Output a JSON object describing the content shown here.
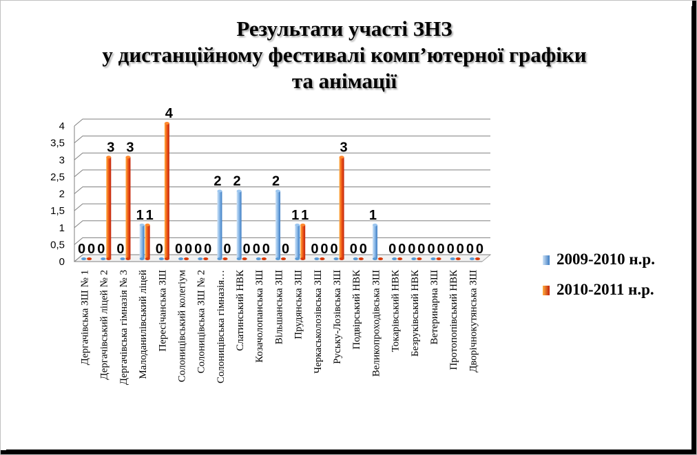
{
  "chart_data": {
    "type": "bar",
    "title_lines": [
      "Результати участі ЗНЗ",
      "у дистанційному фестивалі комп’ютерної графіки",
      "та анімації"
    ],
    "y_ticks": [
      "0",
      "0,5",
      "1",
      "1,5",
      "2",
      "2,5",
      "3",
      "3,5",
      "4"
    ],
    "ylim": [
      0,
      4
    ],
    "grid": true,
    "legend_position": "right",
    "categories": [
      "Дергачівська ЗШ № 1",
      "Дергачівський ліцей № 2",
      "Дергачівська гімназія № 3",
      "Малоданилівський ліцей",
      "Пересічанська ЗШ",
      "Солоницівський колегіум",
      "Солоницівська ЗШ № 2",
      "Солоницівська гімназія…",
      "Слатинський НВК",
      "Козачолопанська ЗШ",
      "Вільшанська ЗШ",
      "Прудянська ЗШ",
      "Черкаськолозівська ЗШ",
      "Руську-Лозівська ЗШ",
      "Подвірський НВК",
      "Великопроходівська ЗШ",
      "Токарівський НВК",
      "Безруківський НВК",
      "Ветеринарна ЗШ",
      "Протопопівський НВК",
      "Дворічнокутянська ЗШ"
    ],
    "series": [
      {
        "name": "2009-2010 н.р.",
        "color": "#5b9bd5",
        "values": [
          0,
          0,
          0,
          1,
          0,
          0,
          0,
          2,
          2,
          0,
          2,
          1,
          0,
          0,
          0,
          1,
          0,
          0,
          0,
          0,
          0
        ]
      },
      {
        "name": "2010-2011 н.р.",
        "color": "#e8410f",
        "values": [
          0,
          3,
          3,
          1,
          4,
          0,
          0,
          0,
          0,
          0,
          0,
          1,
          0,
          3,
          0,
          0,
          0,
          0,
          0,
          0,
          0
        ]
      }
    ],
    "data_labels": [
      [
        "0",
        "0"
      ],
      [
        "0",
        "3"
      ],
      [
        "0",
        "3"
      ],
      [
        "1",
        "1"
      ],
      [
        "0",
        "4"
      ],
      [
        "0",
        "0"
      ],
      [
        "0",
        "0"
      ],
      [
        "2",
        "0"
      ],
      [
        "2",
        "0"
      ],
      [
        "0",
        "0"
      ],
      [
        "2",
        "0"
      ],
      [
        "1",
        "1"
      ],
      [
        "0",
        "0"
      ],
      [
        "0",
        "3"
      ],
      [
        "0",
        "0"
      ],
      [
        "1",
        ""
      ],
      [
        "0",
        "0"
      ],
      [
        "0",
        "0"
      ],
      [
        "0",
        "0"
      ],
      [
        "0",
        "0"
      ],
      [
        "0",
        "0"
      ]
    ]
  }
}
